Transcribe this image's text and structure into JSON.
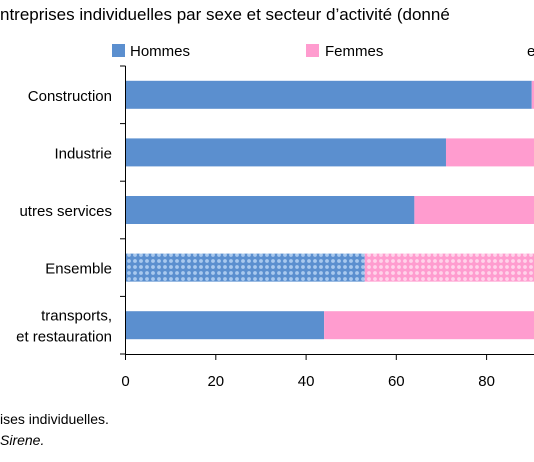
{
  "chart_data": {
    "type": "bar",
    "orientation": "horizontal",
    "stacked": true,
    "title": "ntreprises individuelles par sexe et secteur d’activité (donné",
    "categories": [
      "Construction",
      "Industrie",
      "utres services",
      "Ensemble",
      "transports,|et restauration"
    ],
    "series": [
      {
        "name": "Hommes",
        "values": [
          90,
          71,
          64,
          53,
          44
        ],
        "color": "#5b8fcf",
        "highlight_color": "#a9c9ee"
      },
      {
        "name": "Femmes",
        "values": [
          10,
          29,
          36,
          47,
          56
        ],
        "color": "#ff9ccf",
        "highlight_color": "#ffd3ea"
      }
    ],
    "patterned_category": "Ensemble",
    "xlim": [
      0,
      90.5
    ],
    "xticks": [
      0,
      20,
      40,
      60,
      80
    ],
    "legend_placement": "top",
    "legend_extra": "e",
    "grid": false,
    "notes": [
      "ises individuelles.",
      "Sirene."
    ]
  }
}
